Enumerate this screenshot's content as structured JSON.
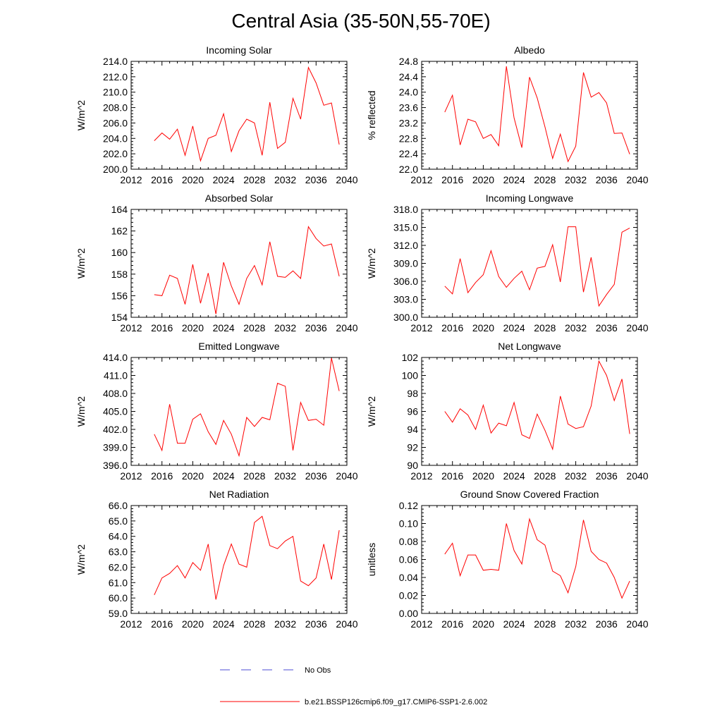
{
  "title": "Central Asia (35-50N,55-70E)",
  "colors": {
    "model_line": "#ff0000",
    "obs_line": "#4b4bd6",
    "axis": "#000000"
  },
  "legend": {
    "obs_label": "No Obs",
    "model_label": "b.e21.BSSP126cmip6.f09_g17.CMIP6-SSP1-2.6.002"
  },
  "chart_data": [
    {
      "type": "line",
      "title": "Incoming Solar",
      "xlabel": "",
      "ylabel": "W/m^2",
      "xlim": [
        2012,
        2040
      ],
      "ylim": [
        200,
        214
      ],
      "xticks": [
        2012,
        2016,
        2020,
        2024,
        2028,
        2032,
        2036,
        2040
      ],
      "yticks": [
        200,
        202,
        204,
        206,
        208,
        210,
        212,
        214
      ],
      "ytick_decimals": 1,
      "ytick_labels": [
        "200.0",
        "202.0",
        "204.0",
        "206.0",
        "208.0",
        "210.0",
        "212.0",
        "214.0"
      ],
      "x": [
        2015,
        2016,
        2017,
        2018,
        2019,
        2020,
        2021,
        2022,
        2023,
        2024,
        2025,
        2026,
        2027,
        2028,
        2029,
        2030,
        2031,
        2032,
        2033,
        2034,
        2035,
        2036,
        2037,
        2038,
        2039
      ],
      "series": [
        {
          "name": "b.e21.BSSP126cmip6.f09_g17.CMIP6-SSP1-2.6.002",
          "values": [
            203.7,
            204.7,
            203.9,
            205.2,
            201.8,
            205.6,
            201.1,
            204.0,
            204.4,
            207.2,
            202.3,
            205.0,
            206.5,
            206.0,
            201.8,
            208.7,
            202.7,
            203.5,
            209.2,
            206.5,
            213.2,
            211.2,
            208.3,
            208.6,
            203.2
          ]
        }
      ]
    },
    {
      "type": "line",
      "title": "Albedo",
      "xlabel": "",
      "ylabel": "% reflected",
      "xlim": [
        2012,
        2040
      ],
      "ylim": [
        22.0,
        24.8
      ],
      "xticks": [
        2012,
        2016,
        2020,
        2024,
        2028,
        2032,
        2036,
        2040
      ],
      "yticks": [
        22.0,
        22.4,
        22.8,
        23.2,
        23.6,
        24.0,
        24.4,
        24.8
      ],
      "ytick_decimals": 1,
      "ytick_labels": [
        "22.0",
        "22.4",
        "22.8",
        "23.2",
        "23.6",
        "24.0",
        "24.4",
        "24.8"
      ],
      "x": [
        2015,
        2016,
        2017,
        2018,
        2019,
        2020,
        2021,
        2022,
        2023,
        2024,
        2025,
        2026,
        2027,
        2028,
        2029,
        2030,
        2031,
        2032,
        2033,
        2034,
        2035,
        2036,
        2037,
        2038,
        2039
      ],
      "series": [
        {
          "name": "b.e21.BSSP126cmip6.f09_g17.CMIP6-SSP1-2.6.002",
          "values": [
            23.48,
            23.92,
            22.63,
            23.3,
            23.23,
            22.8,
            22.9,
            22.61,
            24.67,
            23.33,
            22.56,
            24.39,
            23.85,
            23.1,
            22.28,
            22.91,
            22.2,
            22.6,
            24.51,
            23.87,
            23.99,
            23.72,
            22.93,
            22.94,
            22.39
          ]
        }
      ]
    },
    {
      "type": "line",
      "title": "Absorbed Solar",
      "xlabel": "",
      "ylabel": "W/m^2",
      "xlim": [
        2012,
        2040
      ],
      "ylim": [
        154,
        164
      ],
      "xticks": [
        2012,
        2016,
        2020,
        2024,
        2028,
        2032,
        2036,
        2040
      ],
      "yticks": [
        154,
        156,
        158,
        160,
        162,
        164
      ],
      "ytick_decimals": 0,
      "ytick_labels": [
        "154",
        "156",
        "158",
        "160",
        "162",
        "164"
      ],
      "x": [
        2015,
        2016,
        2017,
        2018,
        2019,
        2020,
        2021,
        2022,
        2023,
        2024,
        2025,
        2026,
        2027,
        2028,
        2029,
        2030,
        2031,
        2032,
        2033,
        2034,
        2035,
        2036,
        2037,
        2038,
        2039
      ],
      "series": [
        {
          "name": "b.e21.BSSP126cmip6.f09_g17.CMIP6-SSP1-2.6.002",
          "values": [
            156.1,
            156.0,
            157.9,
            157.6,
            155.2,
            158.9,
            155.3,
            158.1,
            154.3,
            159.1,
            156.9,
            155.2,
            157.6,
            158.8,
            157.0,
            161.0,
            157.8,
            157.7,
            158.3,
            157.6,
            162.4,
            161.3,
            160.6,
            160.8,
            157.8
          ]
        }
      ]
    },
    {
      "type": "line",
      "title": "Incoming Longwave",
      "xlabel": "",
      "ylabel": "W/m^2",
      "xlim": [
        2012,
        2040
      ],
      "ylim": [
        300,
        318
      ],
      "xticks": [
        2012,
        2016,
        2020,
        2024,
        2028,
        2032,
        2036,
        2040
      ],
      "yticks": [
        300,
        303,
        306,
        309,
        312,
        315,
        318
      ],
      "ytick_decimals": 1,
      "ytick_labels": [
        "300.0",
        "303.0",
        "306.0",
        "309.0",
        "312.0",
        "315.0",
        "318.0"
      ],
      "x": [
        2015,
        2016,
        2017,
        2018,
        2019,
        2020,
        2021,
        2022,
        2023,
        2024,
        2025,
        2026,
        2027,
        2028,
        2029,
        2030,
        2031,
        2032,
        2033,
        2034,
        2035,
        2036,
        2037,
        2038,
        2039
      ],
      "series": [
        {
          "name": "b.e21.BSSP126cmip6.f09_g17.CMIP6-SSP1-2.6.002",
          "values": [
            305.2,
            303.9,
            309.8,
            304.1,
            305.8,
            307.1,
            311.1,
            306.8,
            305.0,
            306.5,
            307.7,
            304.6,
            308.2,
            308.5,
            312.1,
            305.9,
            315.1,
            315.1,
            304.2,
            310.0,
            301.9,
            303.8,
            305.5,
            314.2,
            314.9
          ]
        }
      ]
    },
    {
      "type": "line",
      "title": "Emitted Longwave",
      "xlabel": "",
      "ylabel": "W/m^2",
      "xlim": [
        2012,
        2040
      ],
      "ylim": [
        396,
        414
      ],
      "xticks": [
        2012,
        2016,
        2020,
        2024,
        2028,
        2032,
        2036,
        2040
      ],
      "yticks": [
        396,
        399,
        402,
        405,
        408,
        411,
        414
      ],
      "ytick_decimals": 1,
      "ytick_labels": [
        "396.0",
        "399.0",
        "402.0",
        "405.0",
        "408.0",
        "411.0",
        "414.0"
      ],
      "x": [
        2015,
        2016,
        2017,
        2018,
        2019,
        2020,
        2021,
        2022,
        2023,
        2024,
        2025,
        2026,
        2027,
        2028,
        2029,
        2030,
        2031,
        2032,
        2033,
        2034,
        2035,
        2036,
        2037,
        2038,
        2039
      ],
      "series": [
        {
          "name": "b.e21.BSSP126cmip6.f09_g17.CMIP6-SSP1-2.6.002",
          "values": [
            401.2,
            398.5,
            406.2,
            399.7,
            399.7,
            403.7,
            404.6,
            401.6,
            399.5,
            403.5,
            401.2,
            397.6,
            404.0,
            402.5,
            404.0,
            403.6,
            409.7,
            409.2,
            398.5,
            406.5,
            403.5,
            403.7,
            402.7,
            413.9,
            408.4
          ]
        }
      ]
    },
    {
      "type": "line",
      "title": "Net Longwave",
      "xlabel": "",
      "ylabel": "W/m^2",
      "xlim": [
        2012,
        2040
      ],
      "ylim": [
        90,
        102
      ],
      "xticks": [
        2012,
        2016,
        2020,
        2024,
        2028,
        2032,
        2036,
        2040
      ],
      "yticks": [
        90,
        92,
        94,
        96,
        98,
        100,
        102
      ],
      "ytick_decimals": 0,
      "ytick_labels": [
        "90",
        "92",
        "94",
        "96",
        "98",
        "100",
        "102"
      ],
      "x": [
        2015,
        2016,
        2017,
        2018,
        2019,
        2020,
        2021,
        2022,
        2023,
        2024,
        2025,
        2026,
        2027,
        2028,
        2029,
        2030,
        2031,
        2032,
        2033,
        2034,
        2035,
        2036,
        2037,
        2038,
        2039
      ],
      "series": [
        {
          "name": "b.e21.BSSP126cmip6.f09_g17.CMIP6-SSP1-2.6.002",
          "values": [
            96.0,
            94.8,
            96.3,
            95.6,
            94.0,
            96.7,
            93.6,
            94.7,
            94.4,
            97.0,
            93.4,
            93.0,
            95.7,
            93.9,
            91.8,
            97.7,
            94.6,
            94.1,
            94.3,
            96.6,
            101.6,
            100.0,
            97.2,
            99.6,
            93.5
          ]
        }
      ]
    },
    {
      "type": "line",
      "title": "Net Radiation",
      "xlabel": "",
      "ylabel": "W/m^2",
      "xlim": [
        2012,
        2040
      ],
      "ylim": [
        59,
        66
      ],
      "xticks": [
        2012,
        2016,
        2020,
        2024,
        2028,
        2032,
        2036,
        2040
      ],
      "yticks": [
        59,
        60,
        61,
        62,
        63,
        64,
        65,
        66
      ],
      "ytick_decimals": 1,
      "ytick_labels": [
        "59.0",
        "60.0",
        "61.0",
        "62.0",
        "63.0",
        "64.0",
        "65.0",
        "66.0"
      ],
      "x": [
        2015,
        2016,
        2017,
        2018,
        2019,
        2020,
        2021,
        2022,
        2023,
        2024,
        2025,
        2026,
        2027,
        2028,
        2029,
        2030,
        2031,
        2032,
        2033,
        2034,
        2035,
        2036,
        2037,
        2038,
        2039
      ],
      "series": [
        {
          "name": "b.e21.BSSP126cmip6.f09_g17.CMIP6-SSP1-2.6.002",
          "values": [
            60.2,
            61.3,
            61.6,
            62.1,
            61.3,
            62.3,
            61.8,
            63.5,
            59.9,
            62.1,
            63.5,
            62.2,
            62.0,
            64.9,
            65.3,
            63.4,
            63.2,
            63.7,
            64.0,
            61.1,
            60.8,
            61.3,
            63.5,
            61.2,
            64.4
          ]
        }
      ]
    },
    {
      "type": "line",
      "title": "Ground Snow Covered Fraction",
      "xlabel": "",
      "ylabel": "unitless",
      "xlim": [
        2012,
        2040
      ],
      "ylim": [
        0.0,
        0.12
      ],
      "xticks": [
        2012,
        2016,
        2020,
        2024,
        2028,
        2032,
        2036,
        2040
      ],
      "yticks": [
        0.0,
        0.02,
        0.04,
        0.06,
        0.08,
        0.1,
        0.12
      ],
      "ytick_decimals": 2,
      "ytick_labels": [
        "0.00",
        "0.02",
        "0.04",
        "0.06",
        "0.08",
        "0.10",
        "0.12"
      ],
      "x": [
        2015,
        2016,
        2017,
        2018,
        2019,
        2020,
        2021,
        2022,
        2023,
        2024,
        2025,
        2026,
        2027,
        2028,
        2029,
        2030,
        2031,
        2032,
        2033,
        2034,
        2035,
        2036,
        2037,
        2038,
        2039
      ],
      "series": [
        {
          "name": "b.e21.BSSP126cmip6.f09_g17.CMIP6-SSP1-2.6.002",
          "values": [
            0.066,
            0.078,
            0.042,
            0.065,
            0.065,
            0.048,
            0.049,
            0.048,
            0.1,
            0.07,
            0.055,
            0.105,
            0.082,
            0.076,
            0.047,
            0.042,
            0.023,
            0.052,
            0.104,
            0.069,
            0.06,
            0.056,
            0.04,
            0.017,
            0.036
          ]
        }
      ]
    }
  ]
}
